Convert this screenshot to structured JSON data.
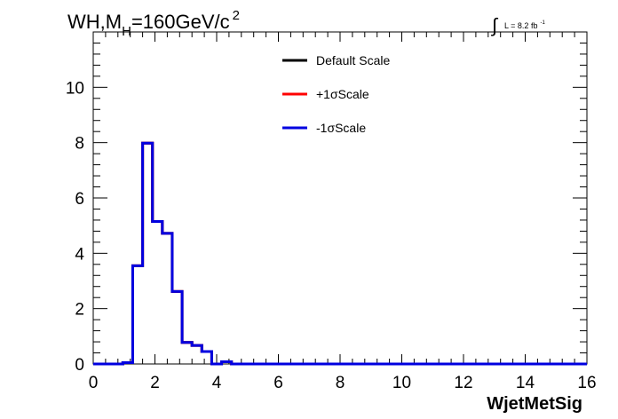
{
  "chart_data": {
    "type": "step-histogram",
    "title_main": "WH,M",
    "title_sub": "H",
    "title_rest": "=160GeV/c",
    "title_sup": "2",
    "lumi_integral": "∫",
    "lumi_label": "L = 8.2 fb",
    "lumi_sup": "-1",
    "xlabel": "WjetMetSig",
    "ylabel": "",
    "xlim": [
      0,
      16
    ],
    "ylim": [
      0,
      12
    ],
    "x_ticks": [
      0,
      2,
      4,
      6,
      8,
      10,
      12,
      14,
      16
    ],
    "x_tick_labels": [
      "0",
      "2",
      "4",
      "6",
      "8",
      "10",
      "12",
      "14",
      "16"
    ],
    "y_ticks": [
      0,
      2,
      4,
      6,
      8,
      10
    ],
    "y_tick_labels": [
      "0",
      "2",
      "4",
      "6",
      "8",
      "10"
    ],
    "bin_width": 0.32,
    "legend_position": "top-center",
    "series": [
      {
        "name": "Default Scale",
        "color": "#000000",
        "values": [
          0,
          0,
          0,
          0.05,
          3.55,
          7.98,
          5.15,
          4.72,
          2.62,
          0.78,
          0.67,
          0.45,
          0,
          0.08,
          0,
          0,
          0,
          0,
          0,
          0,
          0,
          0,
          0,
          0,
          0,
          0,
          0,
          0,
          0,
          0,
          0,
          0,
          0,
          0,
          0,
          0,
          0,
          0,
          0,
          0,
          0,
          0,
          0,
          0,
          0,
          0,
          0,
          0,
          0,
          0
        ]
      },
      {
        "name": "+1σScale",
        "color": "#ff0000",
        "values": [
          0,
          0,
          0,
          0.05,
          3.55,
          7.98,
          5.15,
          4.72,
          2.62,
          0.78,
          0.67,
          0.45,
          0,
          0.08,
          0,
          0,
          0,
          0,
          0,
          0,
          0,
          0,
          0,
          0,
          0,
          0,
          0,
          0,
          0,
          0,
          0,
          0,
          0,
          0,
          0,
          0,
          0,
          0,
          0,
          0,
          0,
          0,
          0,
          0,
          0,
          0,
          0,
          0,
          0,
          0
        ]
      },
      {
        "name": "-1σScale",
        "color": "#0000e0",
        "values": [
          0,
          0,
          0,
          0.05,
          3.55,
          7.98,
          5.15,
          4.72,
          2.62,
          0.78,
          0.67,
          0.45,
          0,
          0.08,
          0,
          0,
          0,
          0,
          0,
          0,
          0,
          0,
          0,
          0,
          0,
          0,
          0,
          0,
          0,
          0,
          0,
          0,
          0,
          0,
          0,
          0,
          0,
          0,
          0,
          0,
          0,
          0,
          0,
          0,
          0,
          0,
          0,
          0,
          0,
          0
        ]
      }
    ]
  }
}
